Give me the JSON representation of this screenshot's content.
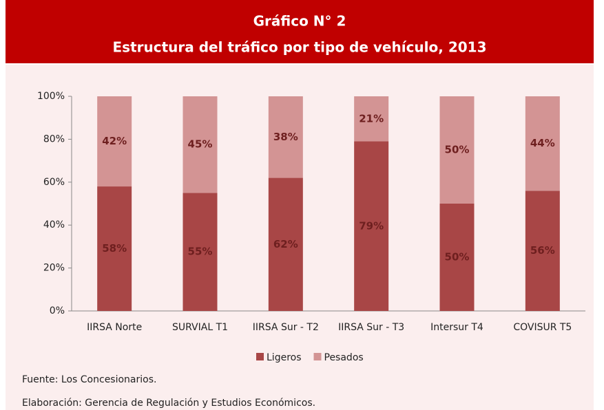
{
  "chart_data": {
    "type": "stacked_bar",
    "title": "Gráfico N° 2",
    "subtitle": "Estructura del tráfico por tipo de vehículo, 2013",
    "categories": [
      "IIRSA Norte",
      "SURVIAL T1",
      "IIRSA Sur - T2",
      "IIRSA Sur - T3",
      "Intersur T4",
      "COVISUR T5"
    ],
    "series": [
      {
        "name": "Ligeros",
        "color": "#a84646",
        "values": [
          58,
          55,
          62,
          79,
          50,
          56
        ],
        "value_labels": [
          "58%",
          "55%",
          "62%",
          "79%",
          "50%",
          "56%"
        ]
      },
      {
        "name": "Pesados",
        "color": "#d39494",
        "values": [
          42,
          45,
          38,
          21,
          50,
          44
        ],
        "value_labels": [
          "42%",
          "45%",
          "38%",
          "21%",
          "50%",
          "44%"
        ]
      }
    ],
    "ylim": [
      0,
      100
    ],
    "yticks": [
      {
        "value": 0,
        "label": "0%"
      },
      {
        "value": 20,
        "label": "20%"
      },
      {
        "value": 40,
        "label": "40%"
      },
      {
        "value": 60,
        "label": "60%"
      },
      {
        "value": 80,
        "label": "80%"
      },
      {
        "value": 100,
        "label": "100%"
      }
    ],
    "grid": false,
    "legend": "bottom",
    "notes": [
      "Fuente: Los Concesionarios.",
      "Elaboración: Gerencia de Regulación y Estudios Económicos."
    ]
  }
}
